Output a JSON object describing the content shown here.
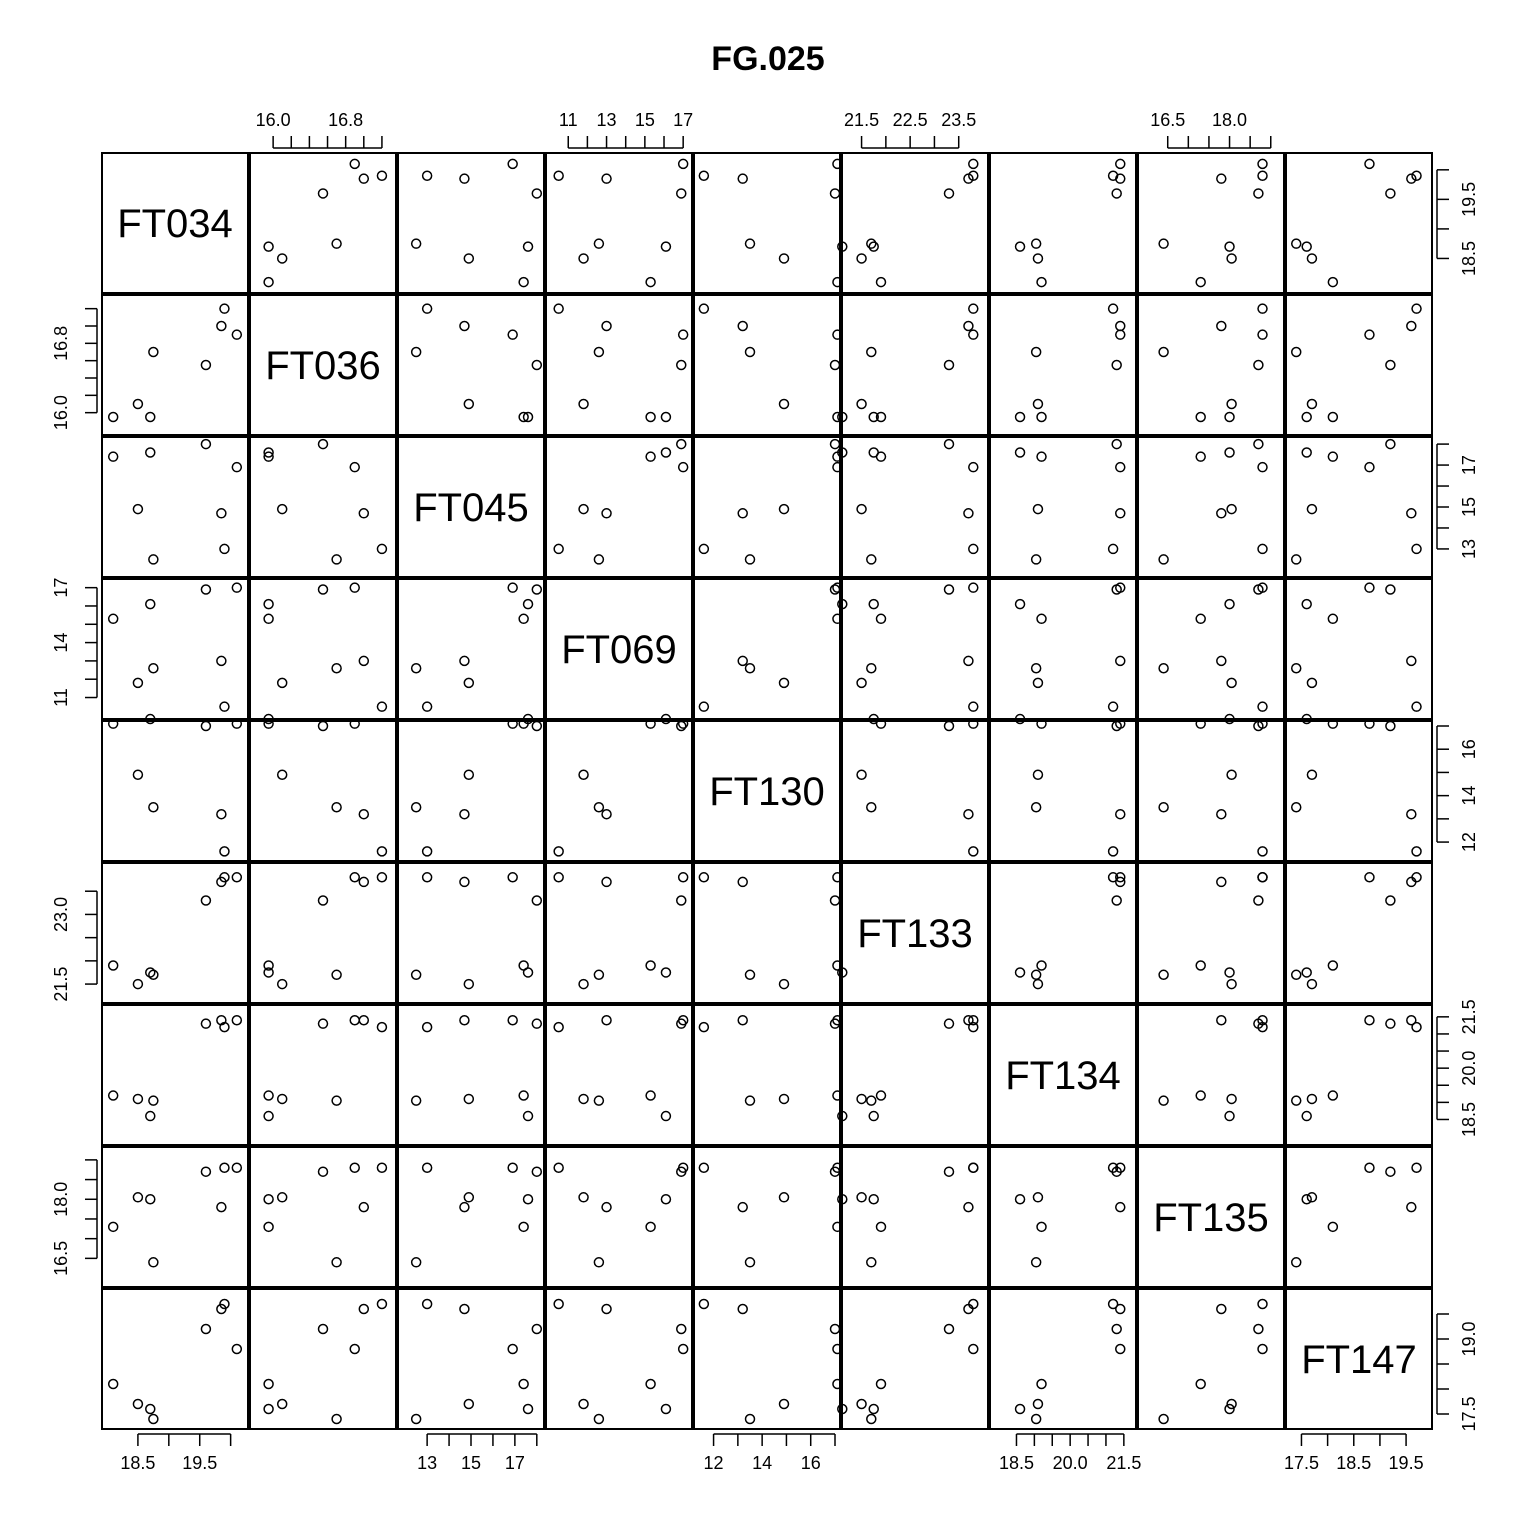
{
  "chart_data": {
    "type": "scatter",
    "subtype": "scatterplot-matrix",
    "title": "FG.025",
    "variables": [
      "FT034",
      "FT036",
      "FT045",
      "FT069",
      "FT130",
      "FT133",
      "FT134",
      "FT135",
      "FT147"
    ],
    "ranges": [
      [
        18.0,
        20.2
      ],
      [
        15.8,
        17.3
      ],
      [
        11.9,
        18.1
      ],
      [
        10.1,
        17.2
      ],
      [
        11.4,
        17.0
      ],
      [
        21.2,
        24.0
      ],
      [
        17.9,
        21.7
      ],
      [
        15.9,
        19.2
      ],
      [
        17.3,
        19.9
      ]
    ],
    "ticks": [
      [
        18.5,
        19.0,
        19.5,
        20.0
      ],
      [
        16.0,
        16.2,
        16.4,
        16.6,
        16.8,
        17.0,
        17.2
      ],
      [
        13,
        14,
        15,
        16,
        17,
        18
      ],
      [
        11,
        12,
        13,
        14,
        15,
        16,
        17
      ],
      [
        12,
        13,
        14,
        15,
        16,
        17
      ],
      [
        21.5,
        22.0,
        22.5,
        23.0,
        23.5
      ],
      [
        18.5,
        19.0,
        19.5,
        20.0,
        20.5,
        21.0,
        21.5
      ],
      [
        16.5,
        17.0,
        17.5,
        18.0,
        18.5,
        19.0
      ],
      [
        17.5,
        18.0,
        18.5,
        19.0,
        19.5
      ]
    ],
    "tick_labels": [
      [
        "18.5",
        "",
        "19.5",
        ""
      ],
      [
        "16.0",
        "",
        "",
        "",
        "16.8",
        "",
        ""
      ],
      [
        "13",
        "",
        "15",
        "",
        "17",
        ""
      ],
      [
        "11",
        "",
        "13",
        "",
        "15",
        "",
        "17"
      ],
      [
        "12",
        "",
        "14",
        "",
        "16",
        ""
      ],
      [
        "21.5",
        "",
        "22.5",
        "",
        "23.5"
      ],
      [
        "18.5",
        "",
        "",
        "20.0",
        "",
        "",
        "21.5"
      ],
      [
        "16.5",
        "",
        "",
        "18.0",
        "",
        ""
      ],
      [
        "17.5",
        "",
        "18.5",
        "",
        "19.5"
      ]
    ],
    "left_tick_labels": [
      [
        "",
        "",
        "",
        ""
      ],
      [
        "16.0",
        "",
        "",
        "",
        "16.8",
        "",
        ""
      ],
      [
        "",
        "",
        "",
        "",
        "",
        ""
      ],
      [
        "11",
        "",
        "",
        "14",
        "",
        "",
        "17"
      ],
      [
        "",
        "",
        "",
        "",
        "",
        ""
      ],
      [
        "21.5",
        "",
        "",
        "23.0",
        ""
      ],
      [
        "",
        "",
        "",
        "",
        "",
        "",
        ""
      ],
      [
        "16.5",
        "",
        "",
        "18.0",
        "",
        ""
      ],
      [
        "",
        "",
        "",
        "",
        ""
      ]
    ],
    "right_tick_labels": [
      [
        "18.5",
        "",
        "19.5",
        ""
      ],
      [
        "",
        "",
        "",
        "",
        "",
        "",
        ""
      ],
      [
        "13",
        "",
        "15",
        "",
        "17",
        ""
      ],
      [
        "",
        "",
        "",
        "",
        "",
        "",
        ""
      ],
      [
        "12",
        "",
        "14",
        "",
        "16",
        ""
      ],
      [
        "",
        "",
        "",
        "",
        ""
      ],
      [
        "18.5",
        "",
        "",
        "20.0",
        "",
        "",
        "21.5"
      ],
      [
        "",
        "",
        "",
        "",
        "",
        ""
      ],
      [
        "17.5",
        "",
        "",
        "19.0",
        ""
      ]
    ],
    "top_axis_cols": [
      1,
      3,
      5,
      7
    ],
    "bottom_axis_cols": [
      0,
      2,
      4,
      6,
      8
    ],
    "left_axis_rows": [
      1,
      3,
      5,
      7
    ],
    "right_axis_rows": [
      0,
      2,
      4,
      6,
      8
    ],
    "observations": [
      [
        18.1,
        15.95,
        17.4,
        15.3,
        17.1,
        21.9,
        19.2,
        17.3,
        18.1
      ],
      [
        18.5,
        16.1,
        14.9,
        11.8,
        14.9,
        21.5,
        19.1,
        18.05,
        17.7
      ],
      [
        18.7,
        15.95,
        17.6,
        16.1,
        17.3,
        21.75,
        18.6,
        18.0,
        17.6
      ],
      [
        18.75,
        16.7,
        12.5,
        12.6,
        13.5,
        21.7,
        19.05,
        16.4,
        17.4
      ],
      [
        19.6,
        16.55,
        18.0,
        16.9,
        17.0,
        23.3,
        21.3,
        18.7,
        19.2
      ],
      [
        19.85,
        17.0,
        14.7,
        13.0,
        13.2,
        23.7,
        21.4,
        17.8,
        19.6
      ],
      [
        19.9,
        17.2,
        13.0,
        10.5,
        11.6,
        23.8,
        21.2,
        18.8,
        19.7
      ],
      [
        20.1,
        16.9,
        16.9,
        17.0,
        17.1,
        23.8,
        21.4,
        18.8,
        18.8
      ]
    ]
  }
}
